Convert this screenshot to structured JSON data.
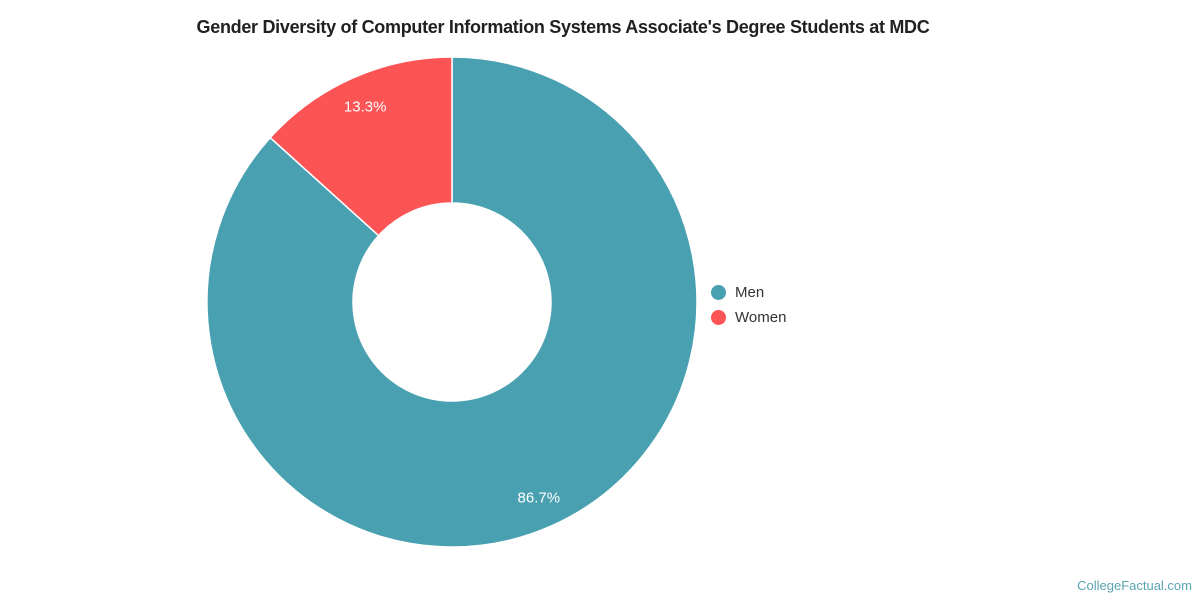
{
  "title": "Gender Diversity of Computer Information Systems Associate's Degree Students at MDC",
  "footer": {
    "credit": "CollegeFactual.com"
  },
  "colors": {
    "background": "#ffffff",
    "title_text": "#212121",
    "legend_text": "#333333",
    "slice_label_text": "#ffffff",
    "slice_border": "#ffffff",
    "credit_text": "#5aa4b3"
  },
  "chart_data": {
    "type": "pie",
    "subtype": "donut",
    "title": "Gender Diversity of Computer Information Systems Associate's Degree Students at MDC",
    "series": [
      {
        "name": "Men",
        "value": 86.7,
        "label": "86.7%",
        "color": "#49A0B0"
      },
      {
        "name": "Women",
        "value": 13.3,
        "label": "13.3%",
        "color": "#FC5355"
      }
    ],
    "total": 100,
    "units": "%",
    "start_angle_deg": 0,
    "direction": "clockwise",
    "inner_radius_ratio": 0.404,
    "legend": {
      "position": "right",
      "marker": "circle"
    },
    "data_labels": "inside"
  }
}
